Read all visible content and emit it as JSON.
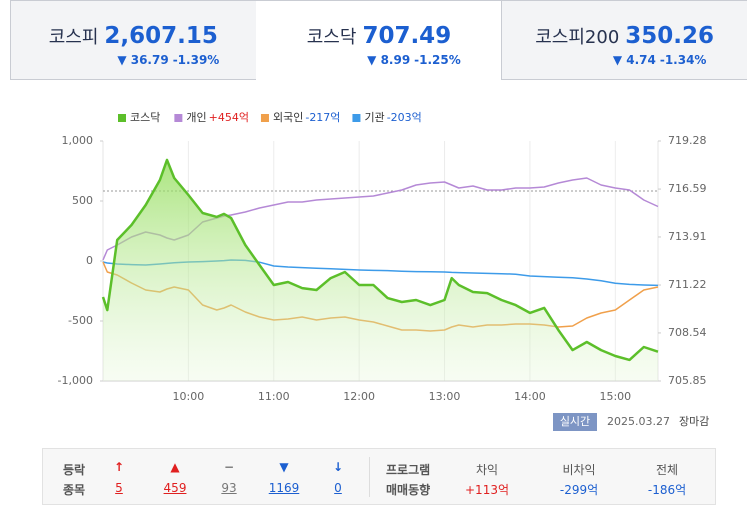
{
  "tabs": {
    "active": 1,
    "items": [
      {
        "name": "코스피",
        "value": "2,607.15",
        "change": "▼ 36.79",
        "rate": "-1.39%"
      },
      {
        "name": "코스닥",
        "value": "707.49",
        "change": "▼ 8.99",
        "rate": "-1.25%"
      },
      {
        "name": "코스피200",
        "value": "350.26",
        "change": "▼ 4.74",
        "rate": "-1.34%"
      }
    ]
  },
  "chart_data": {
    "type": "line",
    "x": [
      "09:00",
      "09:03",
      "09:10",
      "09:20",
      "09:30",
      "09:40",
      "09:45",
      "09:50",
      "10:00",
      "10:10",
      "10:20",
      "10:25",
      "10:30",
      "10:40",
      "10:50",
      "11:00",
      "11:10",
      "11:20",
      "11:30",
      "11:40",
      "11:50",
      "12:00",
      "12:10",
      "12:20",
      "12:30",
      "12:40",
      "12:50",
      "13:00",
      "13:05",
      "13:10",
      "13:20",
      "13:30",
      "13:40",
      "13:50",
      "14:00",
      "14:10",
      "14:20",
      "14:30",
      "14:40",
      "14:50",
      "15:00",
      "15:10",
      "15:20",
      "15:30"
    ],
    "xlim": [
      "09:00",
      "15:30"
    ],
    "xticks": [
      "10:00",
      "11:00",
      "12:00",
      "13:00",
      "14:00",
      "15:00"
    ],
    "ylim": [
      -1000,
      1000
    ],
    "yticks": [
      {
        "value": 1000,
        "label": "1,000"
      },
      500,
      0,
      -500,
      {
        "value": -1000,
        "label": "-1,000"
      }
    ],
    "y2lim": [
      705.85,
      719.28
    ],
    "y2ticks": [
      719.28,
      716.59,
      713.91,
      711.22,
      708.54,
      705.85
    ],
    "reference_line": {
      "value": 716.48,
      "axis": "y2"
    },
    "grid": true,
    "series": [
      {
        "name": "코스닥",
        "color": "#5cbf2a",
        "axis": "y2",
        "area": true,
        "values": [
          710.55,
          709.82,
          713.74,
          714.58,
          715.7,
          717.1,
          718.22,
          717.21,
          716.26,
          715.25,
          715.03,
          715.2,
          714.97,
          713.46,
          712.34,
          711.22,
          711.39,
          711.05,
          710.94,
          711.61,
          711.95,
          711.22,
          711.22,
          710.49,
          710.27,
          710.38,
          710.1,
          710.38,
          711.61,
          711.22,
          710.83,
          710.77,
          710.38,
          710.1,
          709.66,
          709.94,
          708.7,
          707.58,
          708.03,
          707.58,
          707.25,
          707.03,
          707.75,
          707.49
        ]
      },
      {
        "name": "개인",
        "net": "+454억",
        "color": "#b589d6",
        "values": [
          8,
          92,
          133,
          200,
          242,
          217,
          192,
          175,
          217,
          325,
          358,
          375,
          383,
          408,
          442,
          467,
          492,
          492,
          508,
          517,
          525,
          533,
          542,
          567,
          592,
          633,
          650,
          658,
          633,
          608,
          625,
          592,
          592,
          608,
          608,
          617,
          650,
          675,
          692,
          633,
          608,
          592,
          508,
          454
        ]
      },
      {
        "name": "외국인",
        "net": "-217억",
        "color": "#f0a04b",
        "values": [
          -8,
          -92,
          -117,
          -183,
          -242,
          -258,
          -233,
          -217,
          -242,
          -367,
          -408,
          -392,
          -367,
          -425,
          -467,
          -492,
          -483,
          -467,
          -492,
          -475,
          -467,
          -492,
          -508,
          -542,
          -575,
          -575,
          -583,
          -575,
          -550,
          -533,
          -550,
          -533,
          -533,
          -525,
          -525,
          -533,
          -550,
          -542,
          -475,
          -433,
          -408,
          -325,
          -242,
          -217
        ]
      },
      {
        "name": "기관",
        "net": "-203억",
        "color": "#3d9be9",
        "values": [
          -8,
          -17,
          -25,
          -30,
          -33,
          -25,
          -20,
          -15,
          -8,
          -5,
          0,
          3,
          8,
          5,
          -10,
          -42,
          -50,
          -55,
          -60,
          -65,
          -70,
          -75,
          -78,
          -80,
          -85,
          -88,
          -90,
          -92,
          -95,
          -97,
          -100,
          -103,
          -106,
          -110,
          -125,
          -130,
          -135,
          -140,
          -150,
          -165,
          -185,
          -195,
          -200,
          -203
        ]
      }
    ]
  },
  "status": {
    "badge": "실시간",
    "date": "2025.03.27",
    "state": "장마감"
  },
  "summary": {
    "labels": [
      "등락",
      "종목"
    ],
    "symbols": [
      "↑",
      "▲",
      "−",
      "▼",
      "↓"
    ],
    "counts": [
      "5",
      "459",
      "93",
      "1169",
      "0"
    ],
    "colors": [
      "#e02020",
      "#e02020",
      "#777777",
      "#1c5fd0",
      "#1c5fd0"
    ],
    "program": {
      "labels": [
        "프로그램",
        "매매동향"
      ],
      "columns": [
        {
          "name": "차익",
          "value": "+113억"
        },
        {
          "name": "비차익",
          "value": "-299억"
        },
        {
          "name": "전체",
          "value": "-186억"
        }
      ]
    }
  }
}
